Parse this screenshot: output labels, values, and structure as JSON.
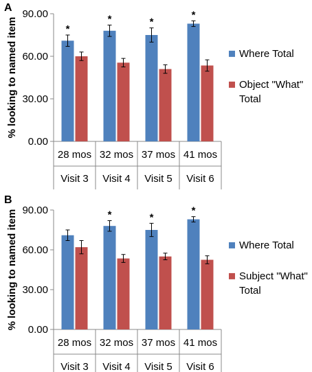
{
  "chart_data": [
    {
      "type": "bar",
      "panel": "A",
      "ylabel": "% looking to named item",
      "ylim": [
        0,
        90
      ],
      "yticks": [
        "0.00",
        "30.00",
        "60.00",
        "90.00"
      ],
      "categories": [
        "28 mos",
        "32 mos",
        "37 mos",
        "41 mos"
      ],
      "groups": [
        "Visit 3",
        "Visit 4",
        "Visit 5",
        "Visit 6"
      ],
      "legend_position": "right",
      "series": [
        {
          "name": "Where Total",
          "color": "#4f81bd",
          "values": [
            71,
            78,
            75,
            83
          ],
          "errors": [
            4,
            4,
            5,
            2
          ]
        },
        {
          "name": "Object \"What\" Total",
          "color": "#c0504d",
          "values": [
            60,
            55.5,
            51,
            53.5
          ],
          "errors": [
            3,
            3,
            3,
            4
          ]
        }
      ],
      "significance": [
        "*",
        "*",
        "*",
        "*"
      ]
    },
    {
      "type": "bar",
      "panel": "B",
      "ylabel": "% looking to named item",
      "ylim": [
        0,
        90
      ],
      "yticks": [
        "0.00",
        "30.00",
        "60.00",
        "90.00"
      ],
      "categories": [
        "28 mos",
        "32 mos",
        "37 mos",
        "41 mos"
      ],
      "groups": [
        "Visit 3",
        "Visit 4",
        "Visit 5",
        "Visit 6"
      ],
      "legend_position": "right",
      "series": [
        {
          "name": "Where Total",
          "color": "#4f81bd",
          "values": [
            71,
            78,
            75,
            83
          ],
          "errors": [
            4,
            4,
            5,
            2
          ]
        },
        {
          "name": "Subject \"What\" Total",
          "color": "#c0504d",
          "values": [
            62,
            53.5,
            55,
            52.5
          ],
          "errors": [
            5,
            3,
            2.5,
            3
          ]
        }
      ],
      "significance": [
        "",
        "*",
        "*",
        "*"
      ]
    }
  ]
}
